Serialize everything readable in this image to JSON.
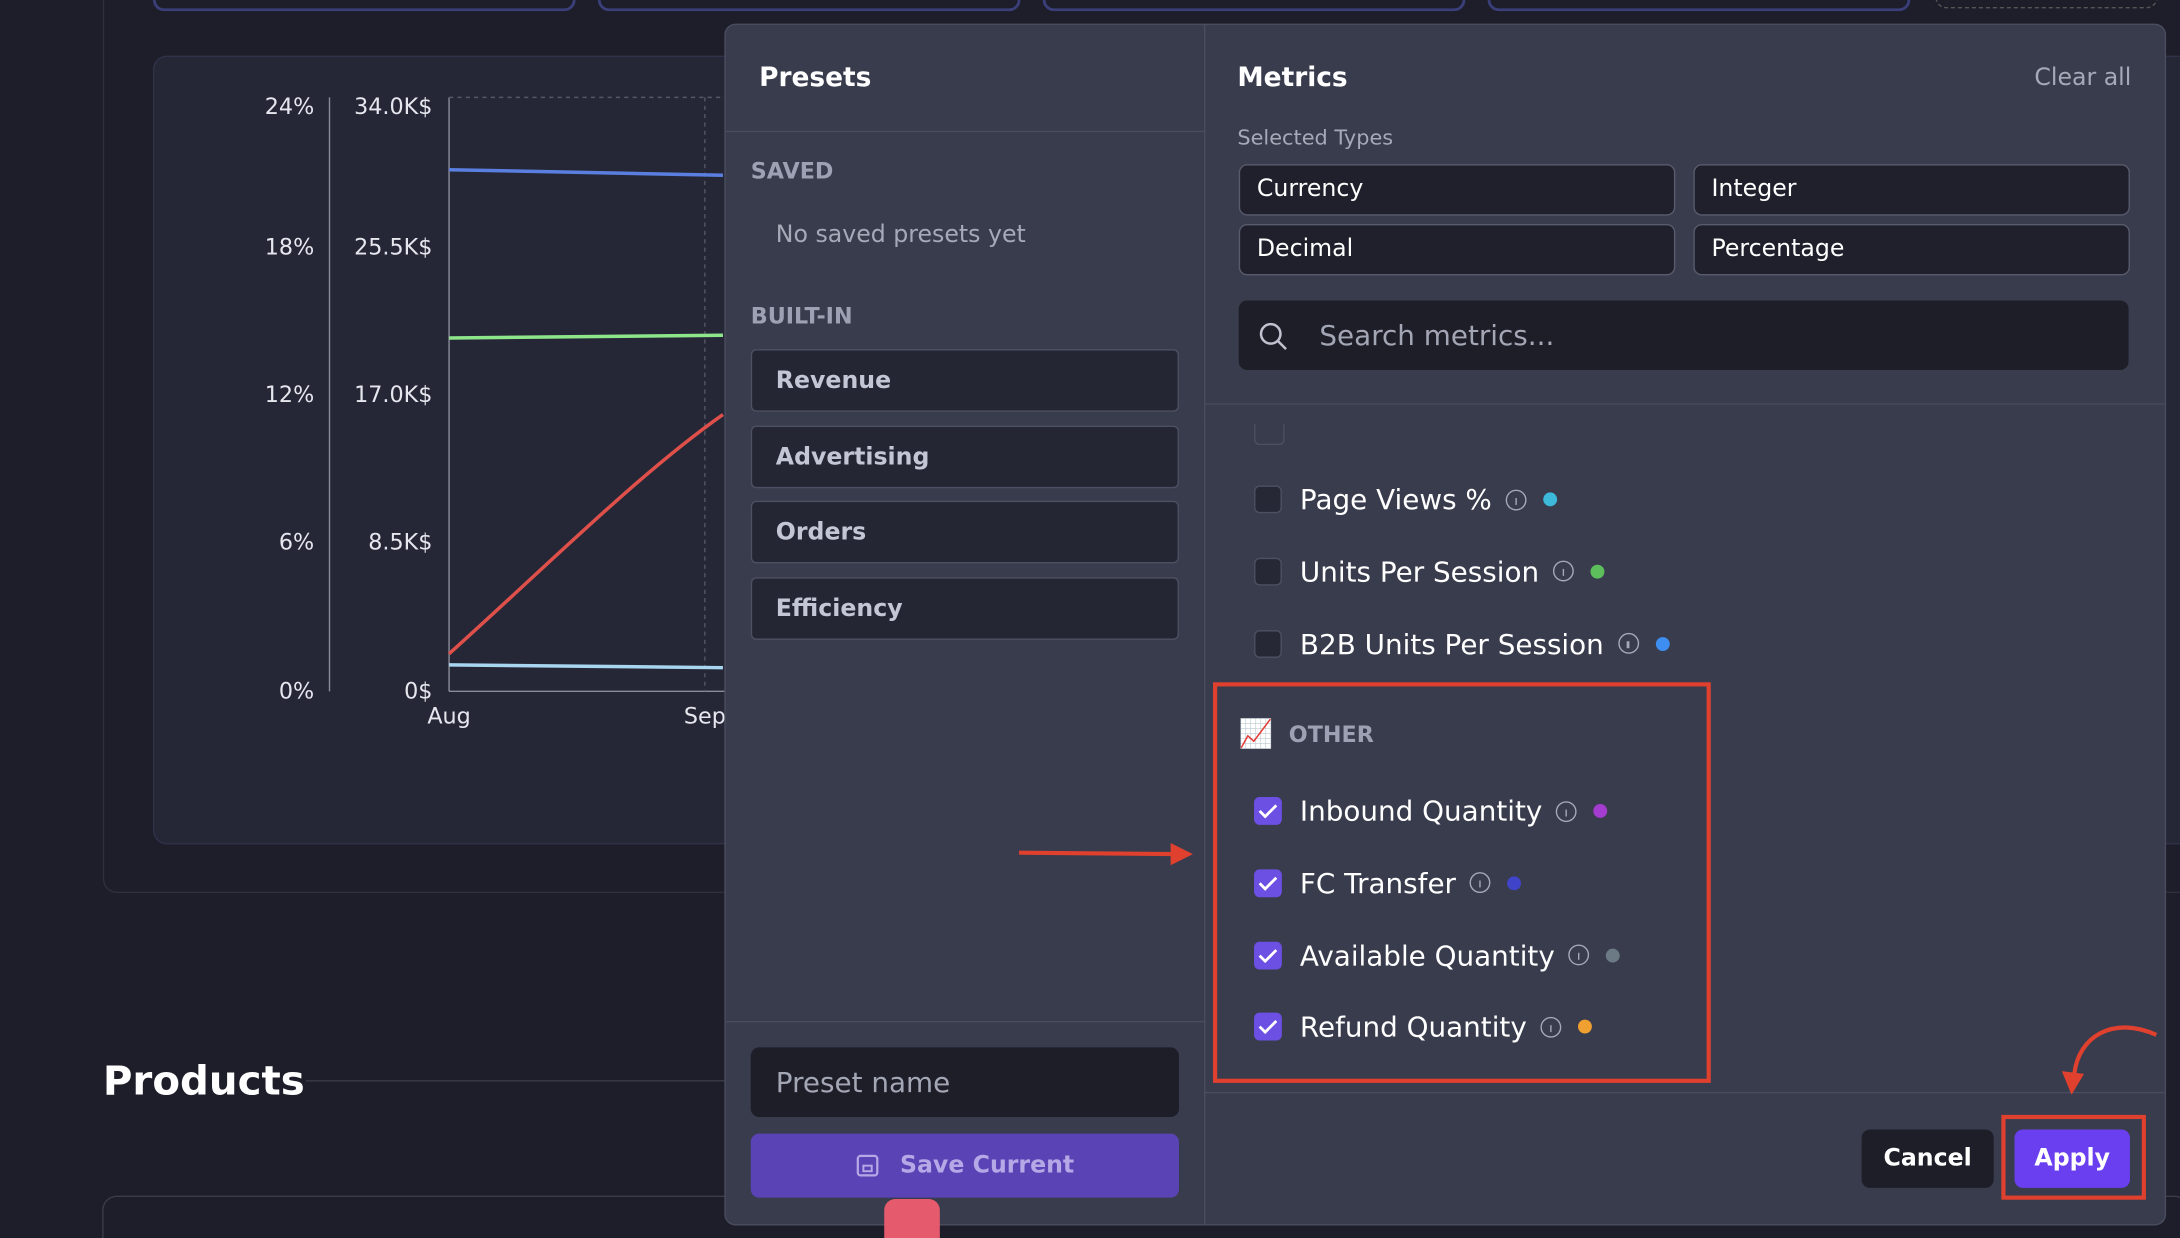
{
  "background": {
    "left_axis_ticks": [
      "24%",
      "18%",
      "12%",
      "6%",
      "0%"
    ],
    "right_axis_ticks": [
      "34.0K$",
      "25.5K$",
      "17.0K$",
      "8.5K$",
      "0$"
    ],
    "x_labels": [
      "Aug",
      "Sep"
    ],
    "section_title": "Products"
  },
  "presets": {
    "title": "Presets",
    "saved_heading": "SAVED",
    "saved_empty": "No saved presets yet",
    "builtin_heading": "BUILT-IN",
    "builtin": [
      "Revenue",
      "Advertising",
      "Orders",
      "Efficiency"
    ],
    "name_placeholder": "Preset name",
    "save_button": "Save Current"
  },
  "metrics": {
    "title": "Metrics",
    "clear_all": "Clear all",
    "selected_types_label": "Selected Types",
    "selected_types": [
      "Currency",
      "Integer",
      "Decimal",
      "Percentage"
    ],
    "search_placeholder": "Search metrics...",
    "items": [
      {
        "label": "Page Views %",
        "checked": false,
        "color": "#3db9d9"
      },
      {
        "label": "Units Per Session",
        "checked": false,
        "color": "#5cbf5c"
      },
      {
        "label": "B2B Units Per Session",
        "checked": false,
        "color": "#3d8ef0"
      }
    ],
    "other_icon": "📈",
    "other_heading": "OTHER",
    "other_items": [
      {
        "label": "Inbound Quantity",
        "checked": true,
        "color": "#a33ccf"
      },
      {
        "label": "FC Transfer",
        "checked": true,
        "color": "#3f44c9"
      },
      {
        "label": "Available Quantity",
        "checked": true,
        "color": "#6b7a84"
      },
      {
        "label": "Refund Quantity",
        "checked": true,
        "color": "#f0a030"
      }
    ]
  },
  "footer": {
    "cancel": "Cancel",
    "apply": "Apply"
  }
}
